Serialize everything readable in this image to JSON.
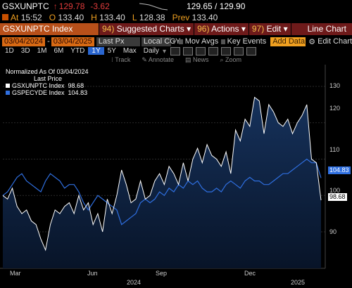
{
  "quote": {
    "ticker": "GSXUNPTC",
    "arrow": "↑",
    "last": "129.78",
    "change": "-3.62",
    "bid_ask": "129.65 / 129.90",
    "at_label": "At",
    "time": "15:52",
    "o_label": "O",
    "open": "133.40",
    "h_label": "H",
    "high": "133.40",
    "l_label": "L",
    "low": "128.38",
    "prev_label": "Prev",
    "prev": "133.40"
  },
  "toolbar": {
    "security": "GSXUNPTC Index",
    "suggested_num": "94)",
    "suggested": "Suggested Charts",
    "actions_num": "96)",
    "actions": "Actions",
    "edit_num": "97)",
    "edit": "Edit",
    "title": "Line Chart"
  },
  "settings": {
    "start_date": "03/04/2024",
    "end_date": "03/04/2025",
    "field": "Last Px",
    "currency": "Local CCY",
    "mov_avgs": "Mov Avgs",
    "key_events": "Key Events",
    "add_data": "Add Data",
    "edit_chart": "Edit Chart"
  },
  "periods": {
    "items": [
      "1D",
      "3D",
      "1M",
      "6M",
      "YTD",
      "1Y",
      "5Y",
      "Max"
    ],
    "selected": "1Y",
    "frequency": "Daily"
  },
  "tools": {
    "track": "Track",
    "annotate": "Annotate",
    "news": "News",
    "zoom": "Zoom"
  },
  "legend": {
    "header1": "Normalized As Of 03/04/2024",
    "header2": "Last Price",
    "s1_name": "GSXUNPTC Index",
    "s1_value": "98.68",
    "s2_name": "GSPECYDE Index",
    "s2_value": "104.83"
  },
  "axis": {
    "y_ticks": [
      "130",
      "120",
      "110",
      "100",
      "90"
    ],
    "x_months": [
      "Mar",
      "Jun",
      "Sep",
      "Dec"
    ],
    "x_years": [
      "2024",
      "2025"
    ],
    "tag_blue": "104.83",
    "tag_white": "98.68"
  },
  "colors": {
    "s1": "#ffffff",
    "s2": "#2f6fe0",
    "area": "#0e2240",
    "accent_orange": "#d86a14",
    "menu_red": "#6e1a1a"
  },
  "chart_data": {
    "type": "line",
    "ylim": [
      83,
      131
    ],
    "y_ticks": [
      90,
      100,
      110,
      120,
      130
    ],
    "series": [
      {
        "name": "GSXUNPTC Index",
        "values": [
          100,
          99,
          102,
          97,
          95,
          96,
          93,
          92,
          88,
          85,
          92,
          96,
          95,
          97,
          98,
          95,
          100,
          96,
          98,
          92,
          95,
          90,
          99,
          95,
          100,
          107,
          103,
          98,
          99,
          104,
          99,
          100,
          104,
          106,
          103,
          108,
          106,
          103,
          109,
          104,
          110,
          113,
          109,
          114,
          111,
          110,
          108,
          112,
          106,
          118,
          115,
          121,
          119,
          127,
          126,
          117,
          125,
          123,
          120,
          119,
          121,
          117,
          120,
          122,
          125,
          110,
          109,
          98.68
        ]
      },
      {
        "name": "GSPECYDE Index",
        "values": [
          100,
          101,
          103,
          105,
          106,
          104,
          103,
          102,
          101,
          104,
          106,
          105,
          104,
          102,
          103,
          103,
          101,
          98,
          96,
          98,
          100,
          99,
          98,
          97,
          96,
          92,
          93,
          94,
          95,
          98,
          99,
          98,
          99,
          101,
          100,
          102,
          101,
          103,
          102,
          104,
          103,
          104,
          102,
          101,
          101,
          102,
          101,
          103,
          104,
          103,
          102,
          104,
          105,
          104,
          104,
          103,
          103,
          104,
          105,
          106,
          106,
          107,
          108,
          109,
          110,
          109,
          109,
          104.83
        ]
      }
    ],
    "x_labels": [
      "Mar",
      "Jun",
      "Sep",
      "Dec",
      "2024",
      "2025"
    ]
  }
}
